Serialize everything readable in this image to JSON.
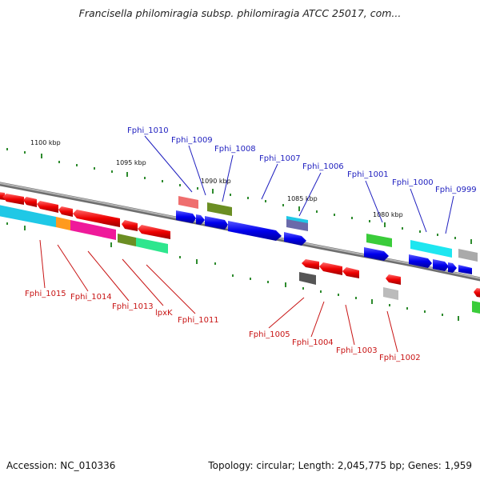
{
  "title": "Francisella philomiragia subsp. philomiragia ATCC 25017, com...",
  "footer": {
    "accession": "Accession: NC_010336",
    "summary": "Topology: circular; Length: 2,045,775 bp; Genes: 1,959"
  },
  "scale_labels": [
    "1100 kbp",
    "1095 kbp",
    "1090 kbp",
    "1085 kbp",
    "1080 kbp"
  ],
  "genes_top": [
    "Fphi_1010",
    "Fphi_1009",
    "Fphi_1008",
    "Fphi_1007",
    "Fphi_1006",
    "Fphi_1001",
    "Fphi_1000",
    "Fphi_0999"
  ],
  "genes_bottom": [
    "Fphi_1015",
    "Fphi_1014",
    "Fphi_1013",
    "lpxK",
    "Fphi_1011",
    "Fphi_1005",
    "Fphi_1004",
    "Fphi_1003",
    "Fphi_1002"
  ],
  "colors": {
    "forward_gene": "#0000ee",
    "reverse_gene": "#ee0000",
    "label_top": "#1f1fbf",
    "label_bottom": "#c81414",
    "backbone": "#8c8c8c",
    "tick": "#2e8b2e"
  }
}
